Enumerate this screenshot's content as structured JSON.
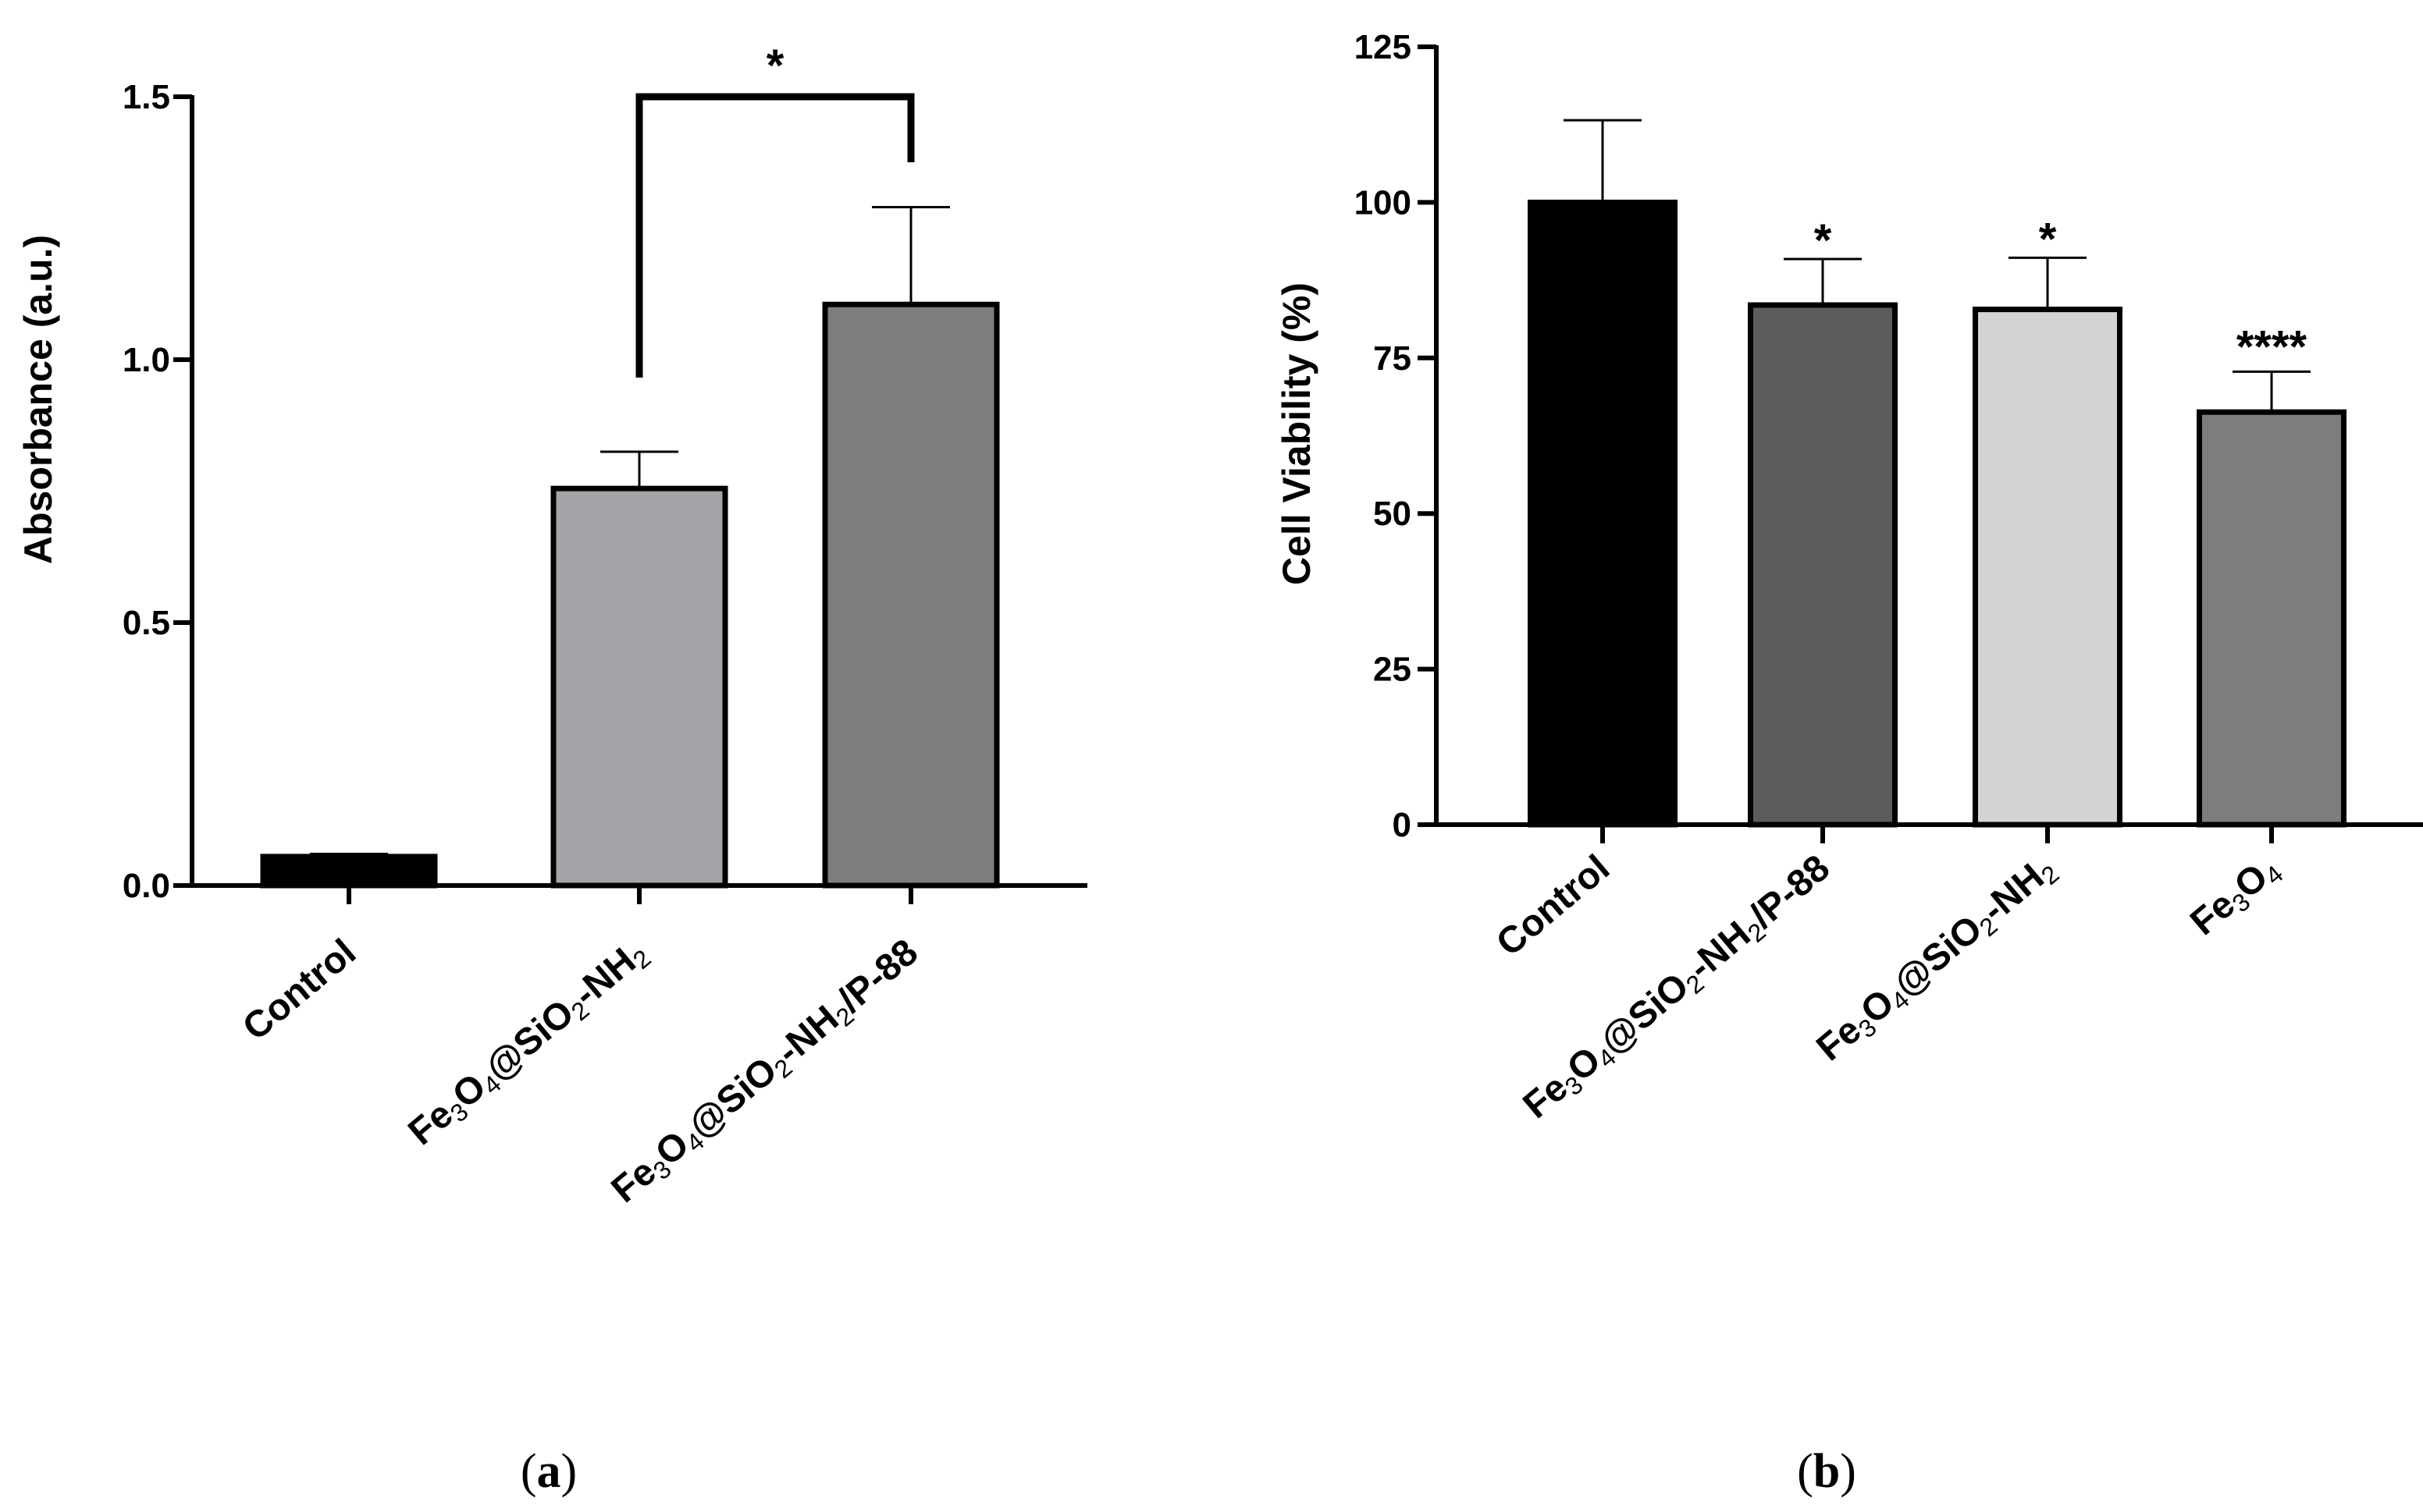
{
  "chart_data": [
    {
      "type": "bar",
      "panel": "a",
      "panel_label_prefix": "(",
      "panel_label_letter": "a",
      "panel_label_suffix": ")",
      "ylabel": "Absorbance (a.u.)",
      "xlabel": "",
      "ylim": [
        0,
        1.5
      ],
      "yticks": [
        "0.0",
        "0.5",
        "1.0",
        "1.5"
      ],
      "yticks_values": [
        0,
        0.5,
        1.0,
        1.5
      ],
      "categories": [
        {
          "label": "Control",
          "parts": [
            {
              "t": "Control"
            }
          ]
        },
        {
          "label": "Fe3O4@SiO2-NH2",
          "parts": [
            {
              "t": "Fe"
            },
            {
              "t": "3",
              "sub": true
            },
            {
              "t": "O"
            },
            {
              "t": "4",
              "sub": true
            },
            {
              "t": "@SiO"
            },
            {
              "t": "2",
              "sub": true
            },
            {
              "t": "-NH"
            },
            {
              "t": "2",
              "sub": true
            }
          ]
        },
        {
          "label": "Fe3O4@SiO2-NH2/P-88",
          "parts": [
            {
              "t": "Fe"
            },
            {
              "t": "3",
              "sub": true
            },
            {
              "t": "O"
            },
            {
              "t": "4",
              "sub": true
            },
            {
              "t": "@SiO"
            },
            {
              "t": "2",
              "sub": true
            },
            {
              "t": "-NH"
            },
            {
              "t": "2",
              "sub": true
            },
            {
              "t": "/P-88"
            }
          ]
        }
      ],
      "values": [
        0.055,
        0.755,
        1.105
      ],
      "errors": [
        0.005,
        0.07,
        0.185
      ],
      "colors": [
        "#000000",
        "#a3a3a8",
        "#7d7d7d"
      ],
      "significance": [
        {
          "from": 1,
          "to": 2,
          "label": "*"
        }
      ]
    },
    {
      "type": "bar",
      "panel": "b",
      "panel_label_prefix": "(",
      "panel_label_letter": "b",
      "panel_label_suffix": ")",
      "ylabel": "Cell Viability (%)",
      "xlabel": "",
      "ylim": [
        0,
        125
      ],
      "yticks": [
        "0",
        "25",
        "50",
        "75",
        "100",
        "125"
      ],
      "yticks_values": [
        0,
        25,
        50,
        75,
        100,
        125
      ],
      "categories": [
        {
          "label": "Control",
          "parts": [
            {
              "t": "Control"
            }
          ]
        },
        {
          "label": "Fe3O4@SiO2-NH2/P-88",
          "parts": [
            {
              "t": "Fe"
            },
            {
              "t": "3",
              "sub": true
            },
            {
              "t": "O"
            },
            {
              "t": "4",
              "sub": true
            },
            {
              "t": "@SiO"
            },
            {
              "t": "2",
              "sub": true
            },
            {
              "t": "-NH"
            },
            {
              "t": "2",
              "sub": true
            },
            {
              "t": "/P-88"
            }
          ]
        },
        {
          "label": "Fe3O4@SiO2-NH2",
          "parts": [
            {
              "t": "Fe"
            },
            {
              "t": "3",
              "sub": true
            },
            {
              "t": "O"
            },
            {
              "t": "4",
              "sub": true
            },
            {
              "t": "@SiO"
            },
            {
              "t": "2",
              "sub": true
            },
            {
              "t": "-NH"
            },
            {
              "t": "2",
              "sub": true
            }
          ]
        },
        {
          "label": "Fe3O4",
          "parts": [
            {
              "t": "Fe"
            },
            {
              "t": "3",
              "sub": true
            },
            {
              "t": "O"
            },
            {
              "t": "4",
              "sub": true
            }
          ]
        }
      ],
      "values": [
        100,
        83.5,
        82.8,
        66.3
      ],
      "errors": [
        13.2,
        7.4,
        8.3,
        6.5
      ],
      "colors": [
        "#000000",
        "#5c5c5c",
        "#d3d3d3",
        "#7d7d7d"
      ],
      "annotations": [
        "",
        "*",
        "*",
        "****"
      ]
    }
  ]
}
